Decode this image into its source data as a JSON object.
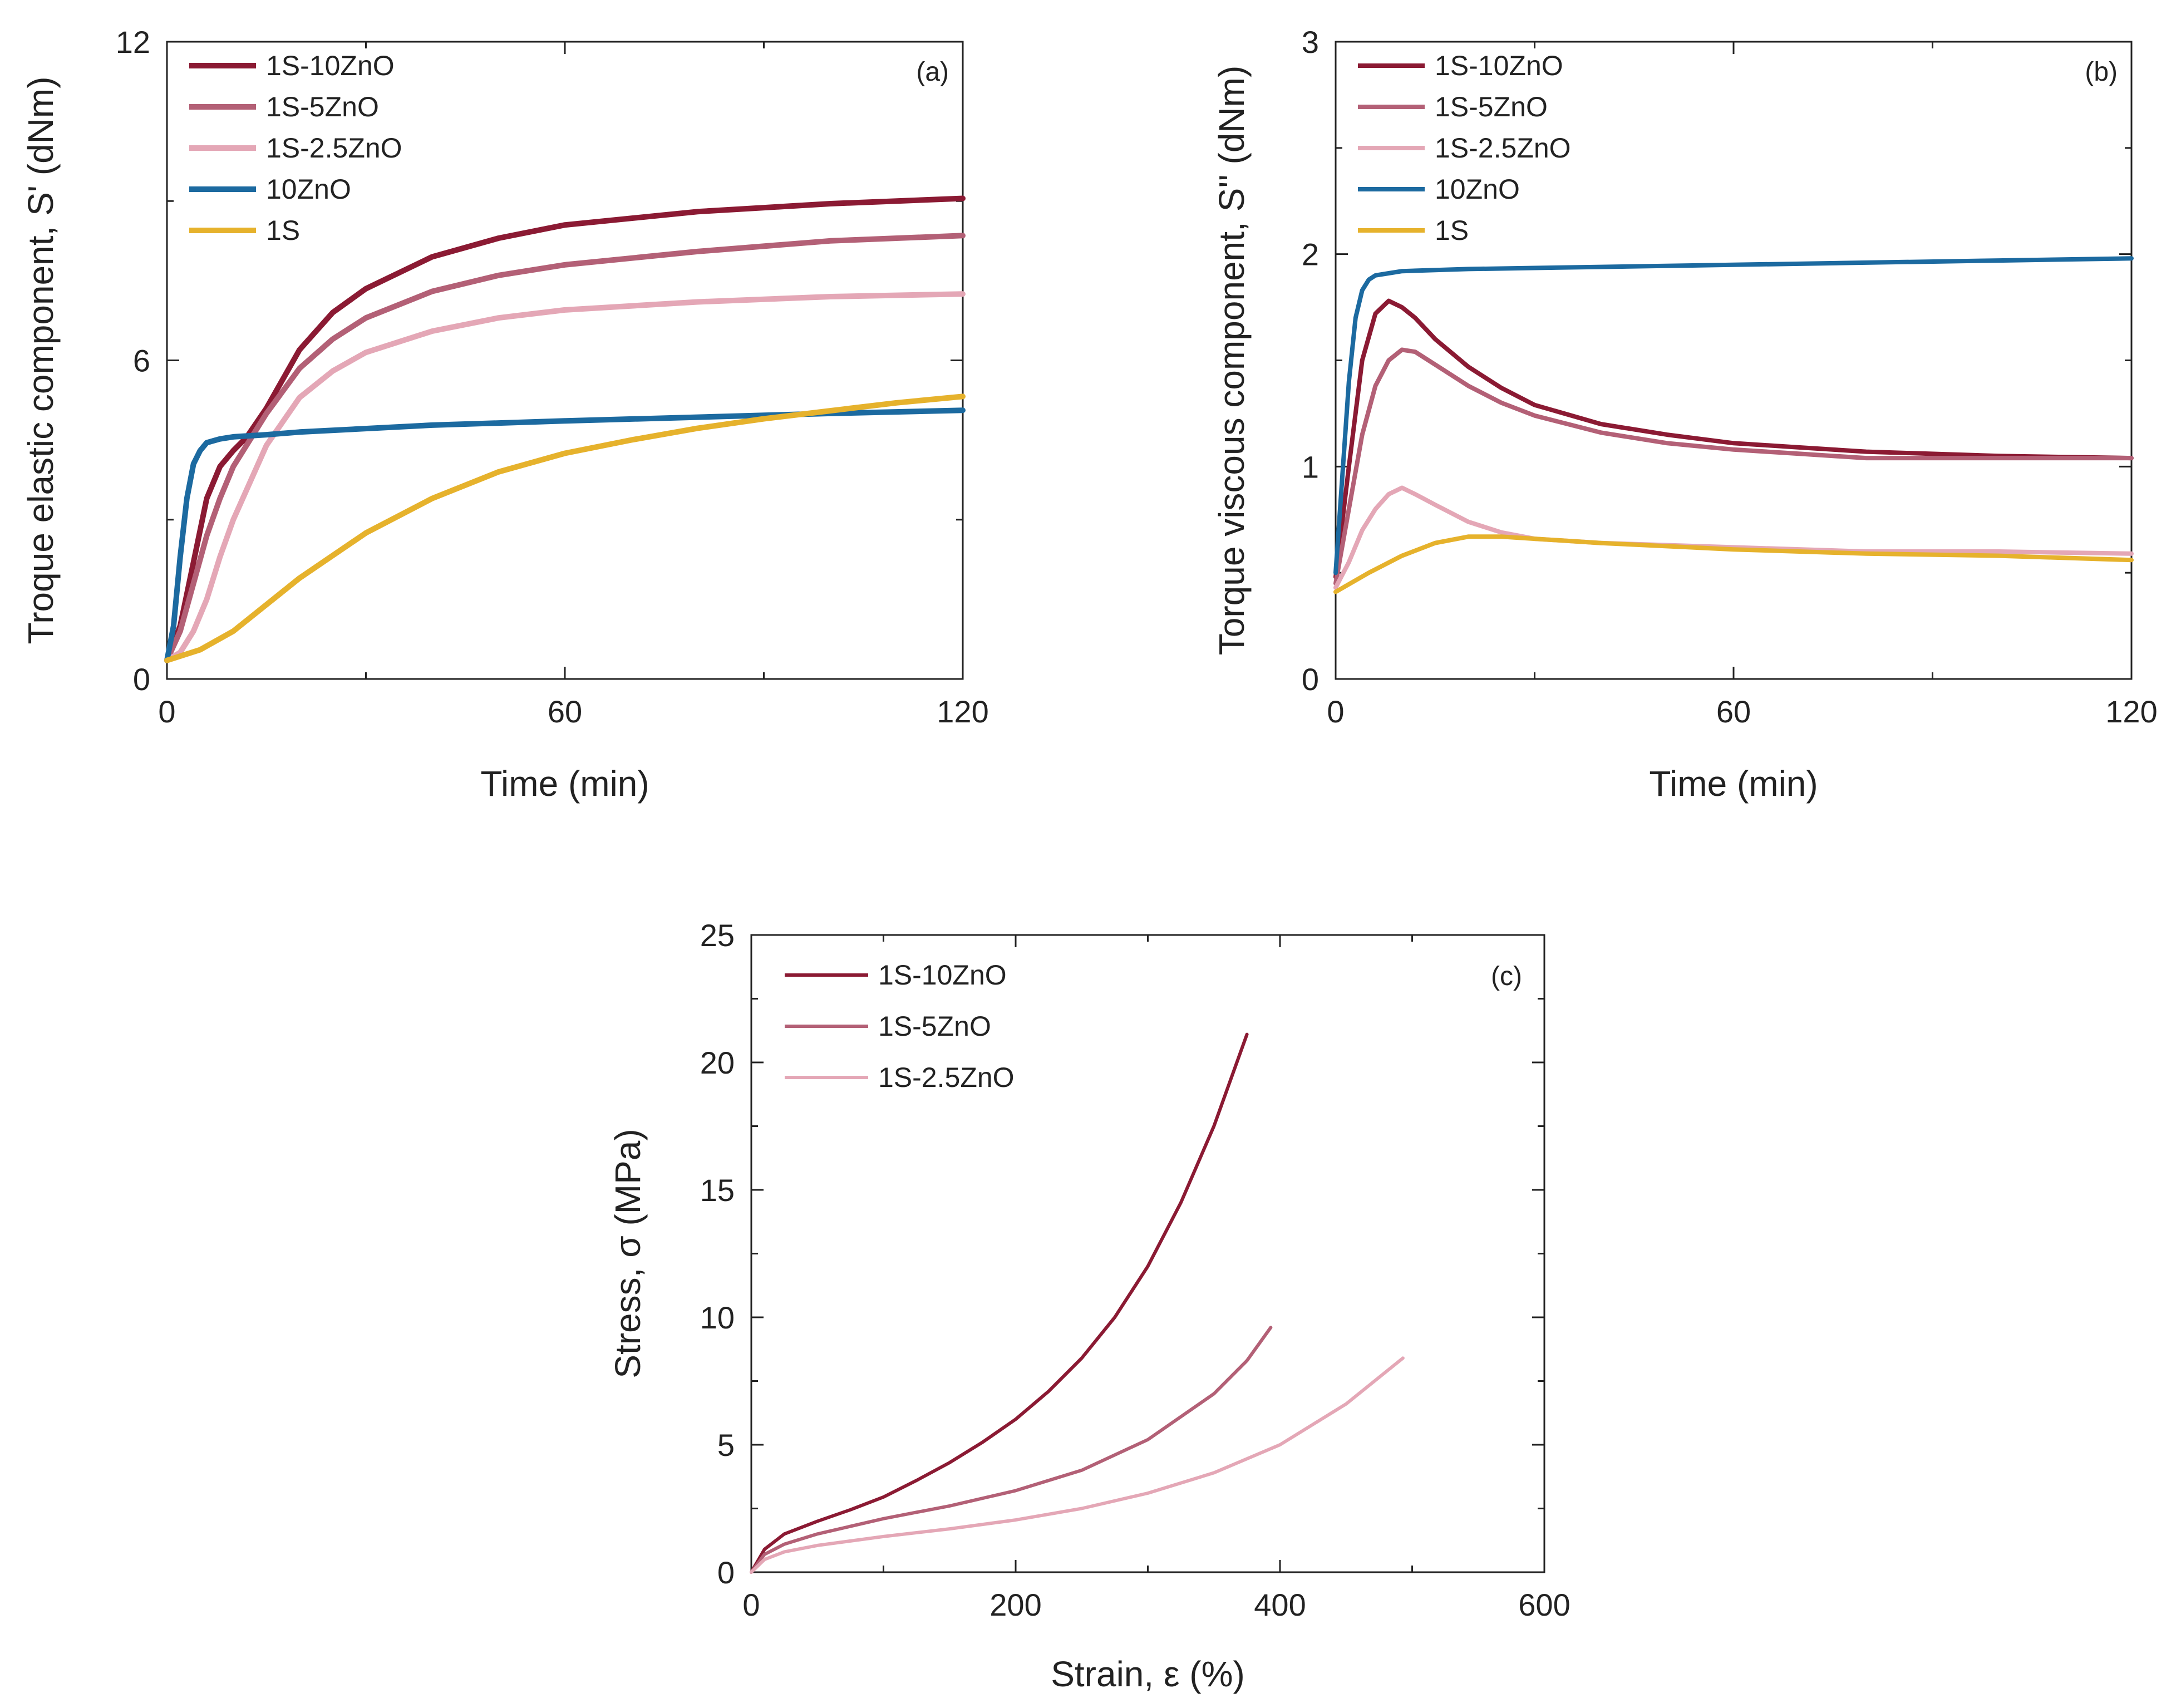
{
  "colors": {
    "s_10zno": "#8b1a33",
    "s_5zno": "#b36076",
    "s_25zno": "#e4a7b6",
    "zno10": "#1c6aa0",
    "s1": "#e6b22c",
    "axis": "#222222"
  },
  "chart_data": [
    {
      "type": "line",
      "panel_label": "(a)",
      "title": "",
      "xlabel": "Time (min)",
      "ylabel": "Troque elastic component, S' (dNm)",
      "xlim": [
        0,
        120
      ],
      "ylim": [
        0,
        12
      ],
      "xticks": [
        0,
        60,
        120
      ],
      "yticks": [
        0,
        6,
        12
      ],
      "x_tick_labels": [
        "0",
        "60",
        "120"
      ],
      "y_tick_labels": [
        "0",
        "6",
        "12"
      ],
      "legend_position": "top-left",
      "series": [
        {
          "name": "1S-10ZnO",
          "color_key": "s_10zno",
          "x": [
            0,
            2,
            4,
            6,
            8,
            10,
            12,
            15,
            20,
            25,
            30,
            40,
            50,
            60,
            80,
            100,
            120
          ],
          "y": [
            0.35,
            1.0,
            2.2,
            3.4,
            4.0,
            4.3,
            4.55,
            5.1,
            6.2,
            6.9,
            7.35,
            7.95,
            8.3,
            8.55,
            8.8,
            8.95,
            9.05
          ]
        },
        {
          "name": "1S-5ZnO",
          "color_key": "s_5zno",
          "x": [
            0,
            2,
            4,
            6,
            8,
            10,
            15,
            20,
            25,
            30,
            40,
            50,
            60,
            80,
            100,
            120
          ],
          "y": [
            0.35,
            0.9,
            1.8,
            2.7,
            3.4,
            4.0,
            5.0,
            5.85,
            6.4,
            6.8,
            7.3,
            7.6,
            7.8,
            8.05,
            8.25,
            8.35
          ]
        },
        {
          "name": "1S-2.5ZnO",
          "color_key": "s_25zno",
          "x": [
            0,
            2,
            4,
            6,
            8,
            10,
            15,
            20,
            25,
            30,
            40,
            50,
            60,
            80,
            100,
            120
          ],
          "y": [
            0.35,
            0.5,
            0.9,
            1.5,
            2.3,
            3.0,
            4.4,
            5.3,
            5.8,
            6.15,
            6.55,
            6.8,
            6.95,
            7.1,
            7.2,
            7.25
          ]
        },
        {
          "name": "10ZnO",
          "color_key": "zno10",
          "x": [
            0,
            1,
            2,
            3,
            4,
            5,
            6,
            8,
            10,
            15,
            20,
            40,
            60,
            80,
            100,
            120
          ],
          "y": [
            0.35,
            1.0,
            2.3,
            3.4,
            4.05,
            4.3,
            4.45,
            4.52,
            4.56,
            4.6,
            4.65,
            4.78,
            4.86,
            4.93,
            5.0,
            5.06
          ]
        },
        {
          "name": "1S",
          "color_key": "s1",
          "x": [
            0,
            5,
            10,
            15,
            20,
            30,
            40,
            50,
            60,
            70,
            80,
            90,
            100,
            110,
            120
          ],
          "y": [
            0.35,
            0.55,
            0.9,
            1.4,
            1.9,
            2.75,
            3.4,
            3.9,
            4.25,
            4.5,
            4.72,
            4.9,
            5.05,
            5.2,
            5.32
          ]
        }
      ]
    },
    {
      "type": "line",
      "panel_label": "(b)",
      "title": "",
      "xlabel": "Time (min)",
      "ylabel": "Torque viscous component, S'' (dNm)",
      "xlim": [
        0,
        120
      ],
      "ylim": [
        0,
        3
      ],
      "xticks": [
        0,
        60,
        120
      ],
      "yticks": [
        0,
        1,
        2,
        3
      ],
      "x_tick_labels": [
        "0",
        "60",
        "120"
      ],
      "y_tick_labels": [
        "0",
        "1",
        "2",
        "3"
      ],
      "legend_position": "top-left",
      "series": [
        {
          "name": "1S-10ZnO",
          "color_key": "s_10zno",
          "x": [
            0,
            2,
            4,
            6,
            8,
            10,
            12,
            15,
            20,
            25,
            30,
            40,
            50,
            60,
            70,
            80,
            100,
            120
          ],
          "y": [
            0.48,
            1.0,
            1.5,
            1.72,
            1.78,
            1.75,
            1.7,
            1.6,
            1.47,
            1.37,
            1.29,
            1.2,
            1.15,
            1.11,
            1.09,
            1.07,
            1.05,
            1.04
          ]
        },
        {
          "name": "1S-5ZnO",
          "color_key": "s_5zno",
          "x": [
            0,
            2,
            4,
            6,
            8,
            10,
            12,
            15,
            20,
            25,
            30,
            40,
            50,
            60,
            70,
            80,
            100,
            120
          ],
          "y": [
            0.45,
            0.8,
            1.15,
            1.38,
            1.5,
            1.55,
            1.54,
            1.48,
            1.38,
            1.3,
            1.24,
            1.16,
            1.11,
            1.08,
            1.06,
            1.04,
            1.04,
            1.04
          ]
        },
        {
          "name": "1S-2.5ZnO",
          "color_key": "s_25zno",
          "x": [
            0,
            2,
            4,
            6,
            8,
            10,
            12,
            15,
            20,
            25,
            30,
            40,
            60,
            80,
            100,
            120
          ],
          "y": [
            0.43,
            0.55,
            0.7,
            0.8,
            0.87,
            0.9,
            0.87,
            0.82,
            0.74,
            0.69,
            0.66,
            0.64,
            0.62,
            0.6,
            0.6,
            0.59
          ]
        },
        {
          "name": "10ZnO",
          "color_key": "zno10",
          "x": [
            0,
            1,
            2,
            3,
            4,
            5,
            6,
            8,
            10,
            20,
            40,
            60,
            80,
            100,
            120
          ],
          "y": [
            0.5,
            0.95,
            1.4,
            1.7,
            1.83,
            1.88,
            1.9,
            1.91,
            1.92,
            1.93,
            1.94,
            1.95,
            1.96,
            1.97,
            1.98
          ]
        },
        {
          "name": "1S",
          "color_key": "s1",
          "x": [
            0,
            5,
            10,
            15,
            20,
            25,
            30,
            40,
            60,
            80,
            100,
            120
          ],
          "y": [
            0.41,
            0.5,
            0.58,
            0.64,
            0.67,
            0.67,
            0.66,
            0.64,
            0.61,
            0.59,
            0.58,
            0.56
          ]
        }
      ]
    },
    {
      "type": "line",
      "panel_label": "(c)",
      "title": "",
      "xlabel": "Strain, ε (%)",
      "ylabel": "Stress, σ (MPa)",
      "xlim": [
        0,
        600
      ],
      "ylim": [
        0,
        25
      ],
      "xticks": [
        0,
        200,
        400,
        600
      ],
      "yticks": [
        0,
        5,
        10,
        15,
        20,
        25
      ],
      "x_tick_labels": [
        "0",
        "200",
        "400",
        "600"
      ],
      "y_tick_labels": [
        "0",
        "5",
        "10",
        "15",
        "20",
        "25"
      ],
      "legend_position": "top-left",
      "series": [
        {
          "name": "1S-10ZnO",
          "color_key": "s_10zno",
          "x": [
            0,
            10,
            25,
            50,
            75,
            100,
            125,
            150,
            175,
            200,
            225,
            250,
            275,
            300,
            325,
            350,
            375
          ],
          "y": [
            0,
            0.9,
            1.5,
            2.0,
            2.45,
            2.95,
            3.6,
            4.3,
            5.1,
            6.0,
            7.1,
            8.4,
            10.0,
            12.0,
            14.5,
            17.5,
            21.1
          ]
        },
        {
          "name": "1S-5ZnO",
          "color_key": "s_5zno",
          "x": [
            0,
            10,
            25,
            50,
            100,
            150,
            200,
            250,
            300,
            350,
            375,
            393
          ],
          "y": [
            0,
            0.7,
            1.1,
            1.5,
            2.1,
            2.6,
            3.2,
            4.0,
            5.2,
            7.0,
            8.3,
            9.6
          ]
        },
        {
          "name": "1S-2.5ZnO",
          "color_key": "s_25zno",
          "x": [
            0,
            10,
            25,
            50,
            100,
            150,
            200,
            250,
            300,
            350,
            400,
            450,
            493
          ],
          "y": [
            0,
            0.5,
            0.8,
            1.05,
            1.4,
            1.7,
            2.05,
            2.5,
            3.1,
            3.9,
            5.0,
            6.6,
            8.4
          ]
        }
      ]
    }
  ]
}
